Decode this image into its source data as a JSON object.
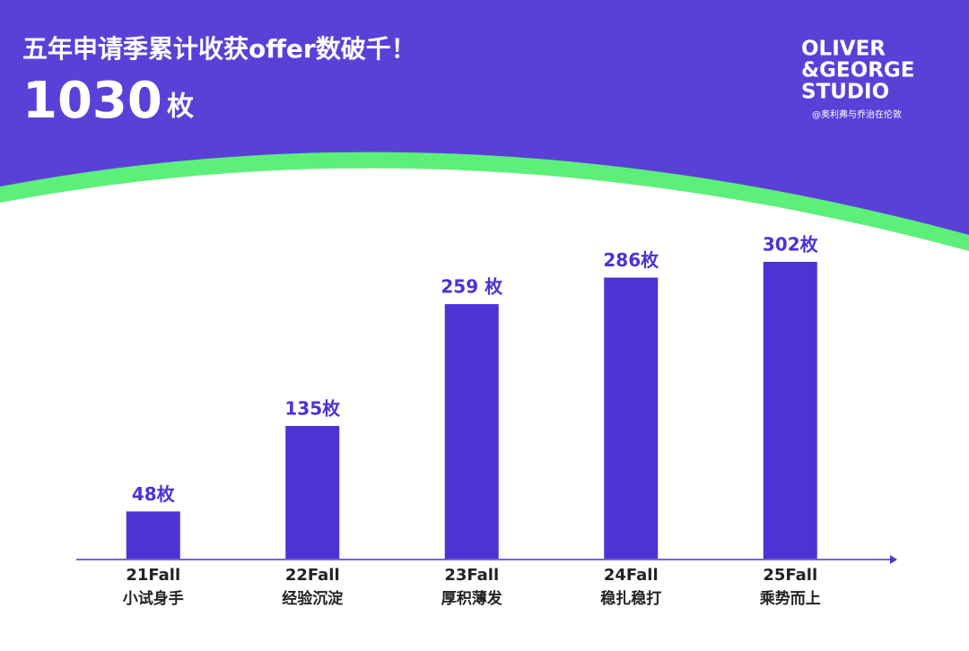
{
  "chart_data": {
    "type": "bar",
    "title": "五年申请季累计收获offer数破千！",
    "headline": {
      "number": "1030",
      "unit": "枚"
    },
    "brand": {
      "lines": [
        "OLIVER",
        "&GEORGE",
        "STUDIO"
      ],
      "handle": "@奥利弗与乔治在伦敦"
    },
    "categories": [
      "21Fall",
      "22Fall",
      "23Fall",
      "24Fall",
      "25Fall"
    ],
    "category_subtitles": [
      "小试身手",
      "经验沉淀",
      "厚积薄发",
      "稳扎稳打",
      "乘势而上"
    ],
    "values": [
      48,
      135,
      259,
      286,
      302
    ],
    "value_labels": [
      "48枚",
      "135枚",
      "259 枚",
      "286枚",
      "302枚"
    ],
    "color": "#4b33d4"
  }
}
